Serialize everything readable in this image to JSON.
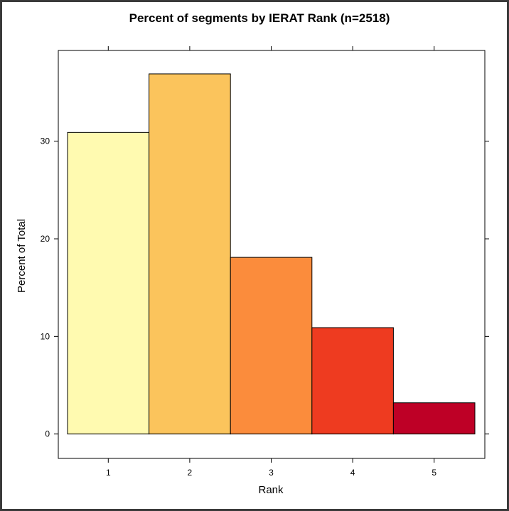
{
  "chart_data": {
    "type": "bar",
    "title": "Percent of segments by IERAT Rank (n=2518)",
    "xlabel": "Rank",
    "ylabel": "Percent of Total",
    "categories": [
      "1",
      "2",
      "3",
      "4",
      "5"
    ],
    "values": [
      30.9,
      36.9,
      18.1,
      10.9,
      3.2
    ],
    "colors": [
      "#FFFAB0",
      "#FBC45C",
      "#FB8C3C",
      "#EE3B20",
      "#BE0026"
    ],
    "bar_outline_color": "#000000",
    "yticks": [
      0,
      10,
      20,
      30
    ],
    "ylim": [
      -2.5,
      39.3
    ],
    "grid": false,
    "legend": "none"
  }
}
